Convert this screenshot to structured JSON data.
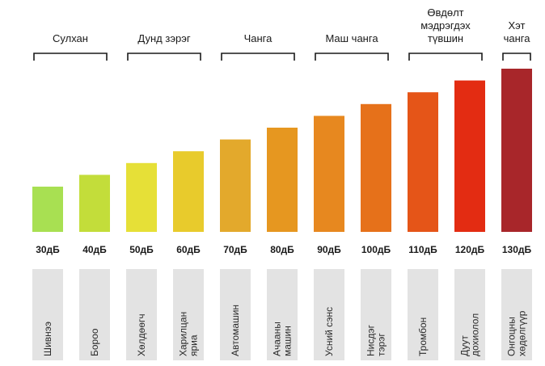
{
  "chart_data": {
    "type": "bar",
    "unit": "дБ",
    "categories": [
      "Шивнээ",
      "Бороо",
      "Хөлдөөгч",
      "Харилцан яриа",
      "Автомашин",
      "Ачааны машин",
      "Усний сэнс",
      "Нисдэг тэрэг",
      "Тромбон",
      "Дуут дохиолол",
      "Онгоцны хөдөлгүүр"
    ],
    "tick_labels": [
      "30дБ",
      "40дБ",
      "50дБ",
      "60дБ",
      "70дБ",
      "80дБ",
      "90дБ",
      "100дБ",
      "110дБ",
      "120дБ",
      "130дБ"
    ],
    "source_labels": [
      [
        "Шивнээ"
      ],
      [
        "Бороо"
      ],
      [
        "Хөлдөөгч"
      ],
      [
        "Харилцан",
        "яриа"
      ],
      [
        "Автомашин"
      ],
      [
        "Ачааны",
        "машин"
      ],
      [
        "Усний сэнс"
      ],
      [
        "Нисдэг",
        "тэрэг"
      ],
      [
        "Тромбон"
      ],
      [
        "Дуут",
        "дохиолол"
      ],
      [
        "Онгоцны",
        "хөдөлгүүр"
      ]
    ],
    "values": [
      30,
      40,
      50,
      60,
      70,
      80,
      90,
      100,
      110,
      120,
      130
    ],
    "colors": [
      "#a8e052",
      "#c3dd3a",
      "#e6e037",
      "#e8cb2c",
      "#e3a92c",
      "#e69720",
      "#e7881f",
      "#e6711a",
      "#e55518",
      "#e32c12",
      "#a8262a"
    ],
    "groups": [
      {
        "label": [
          "Сулхан"
        ],
        "range": [
          30,
          40
        ]
      },
      {
        "label": [
          "Дунд зэрэг"
        ],
        "range": [
          50,
          60
        ]
      },
      {
        "label": [
          "Чанга"
        ],
        "range": [
          70,
          80
        ]
      },
      {
        "label": [
          "Маш чанга"
        ],
        "range": [
          90,
          100
        ]
      },
      {
        "label": [
          "Өвдөлт",
          "мэдрэгдэх",
          "түвшин"
        ],
        "range": [
          110,
          120
        ]
      },
      {
        "label": [
          "Хэт",
          "чанга"
        ],
        "range": [
          130,
          130
        ]
      }
    ]
  }
}
